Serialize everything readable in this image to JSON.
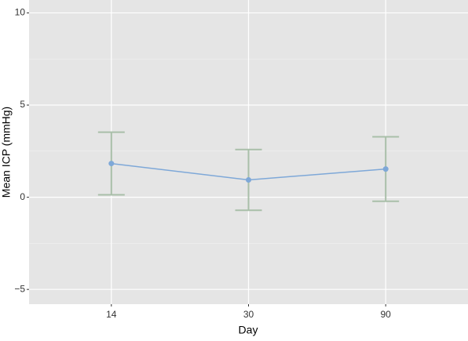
{
  "chart_data": {
    "type": "line",
    "x_label": "Day",
    "y_label": "Mean ICP (mmHg)",
    "categories": [
      "14",
      "30",
      "90"
    ],
    "series": [
      {
        "values": [
          1.83,
          0.94,
          1.53
        ],
        "errors": [
          1.7,
          1.65,
          1.75
        ],
        "color": "#7ea8d8",
        "error_color": "#a9bfa9"
      }
    ],
    "ylim": [
      -5.8,
      10.7
    ],
    "yticks": [
      {
        "value": -5,
        "label": "−5"
      },
      0,
      5,
      10
    ],
    "minor_yticks": [
      -2.5,
      2.5,
      7.5
    ],
    "grid": true
  }
}
